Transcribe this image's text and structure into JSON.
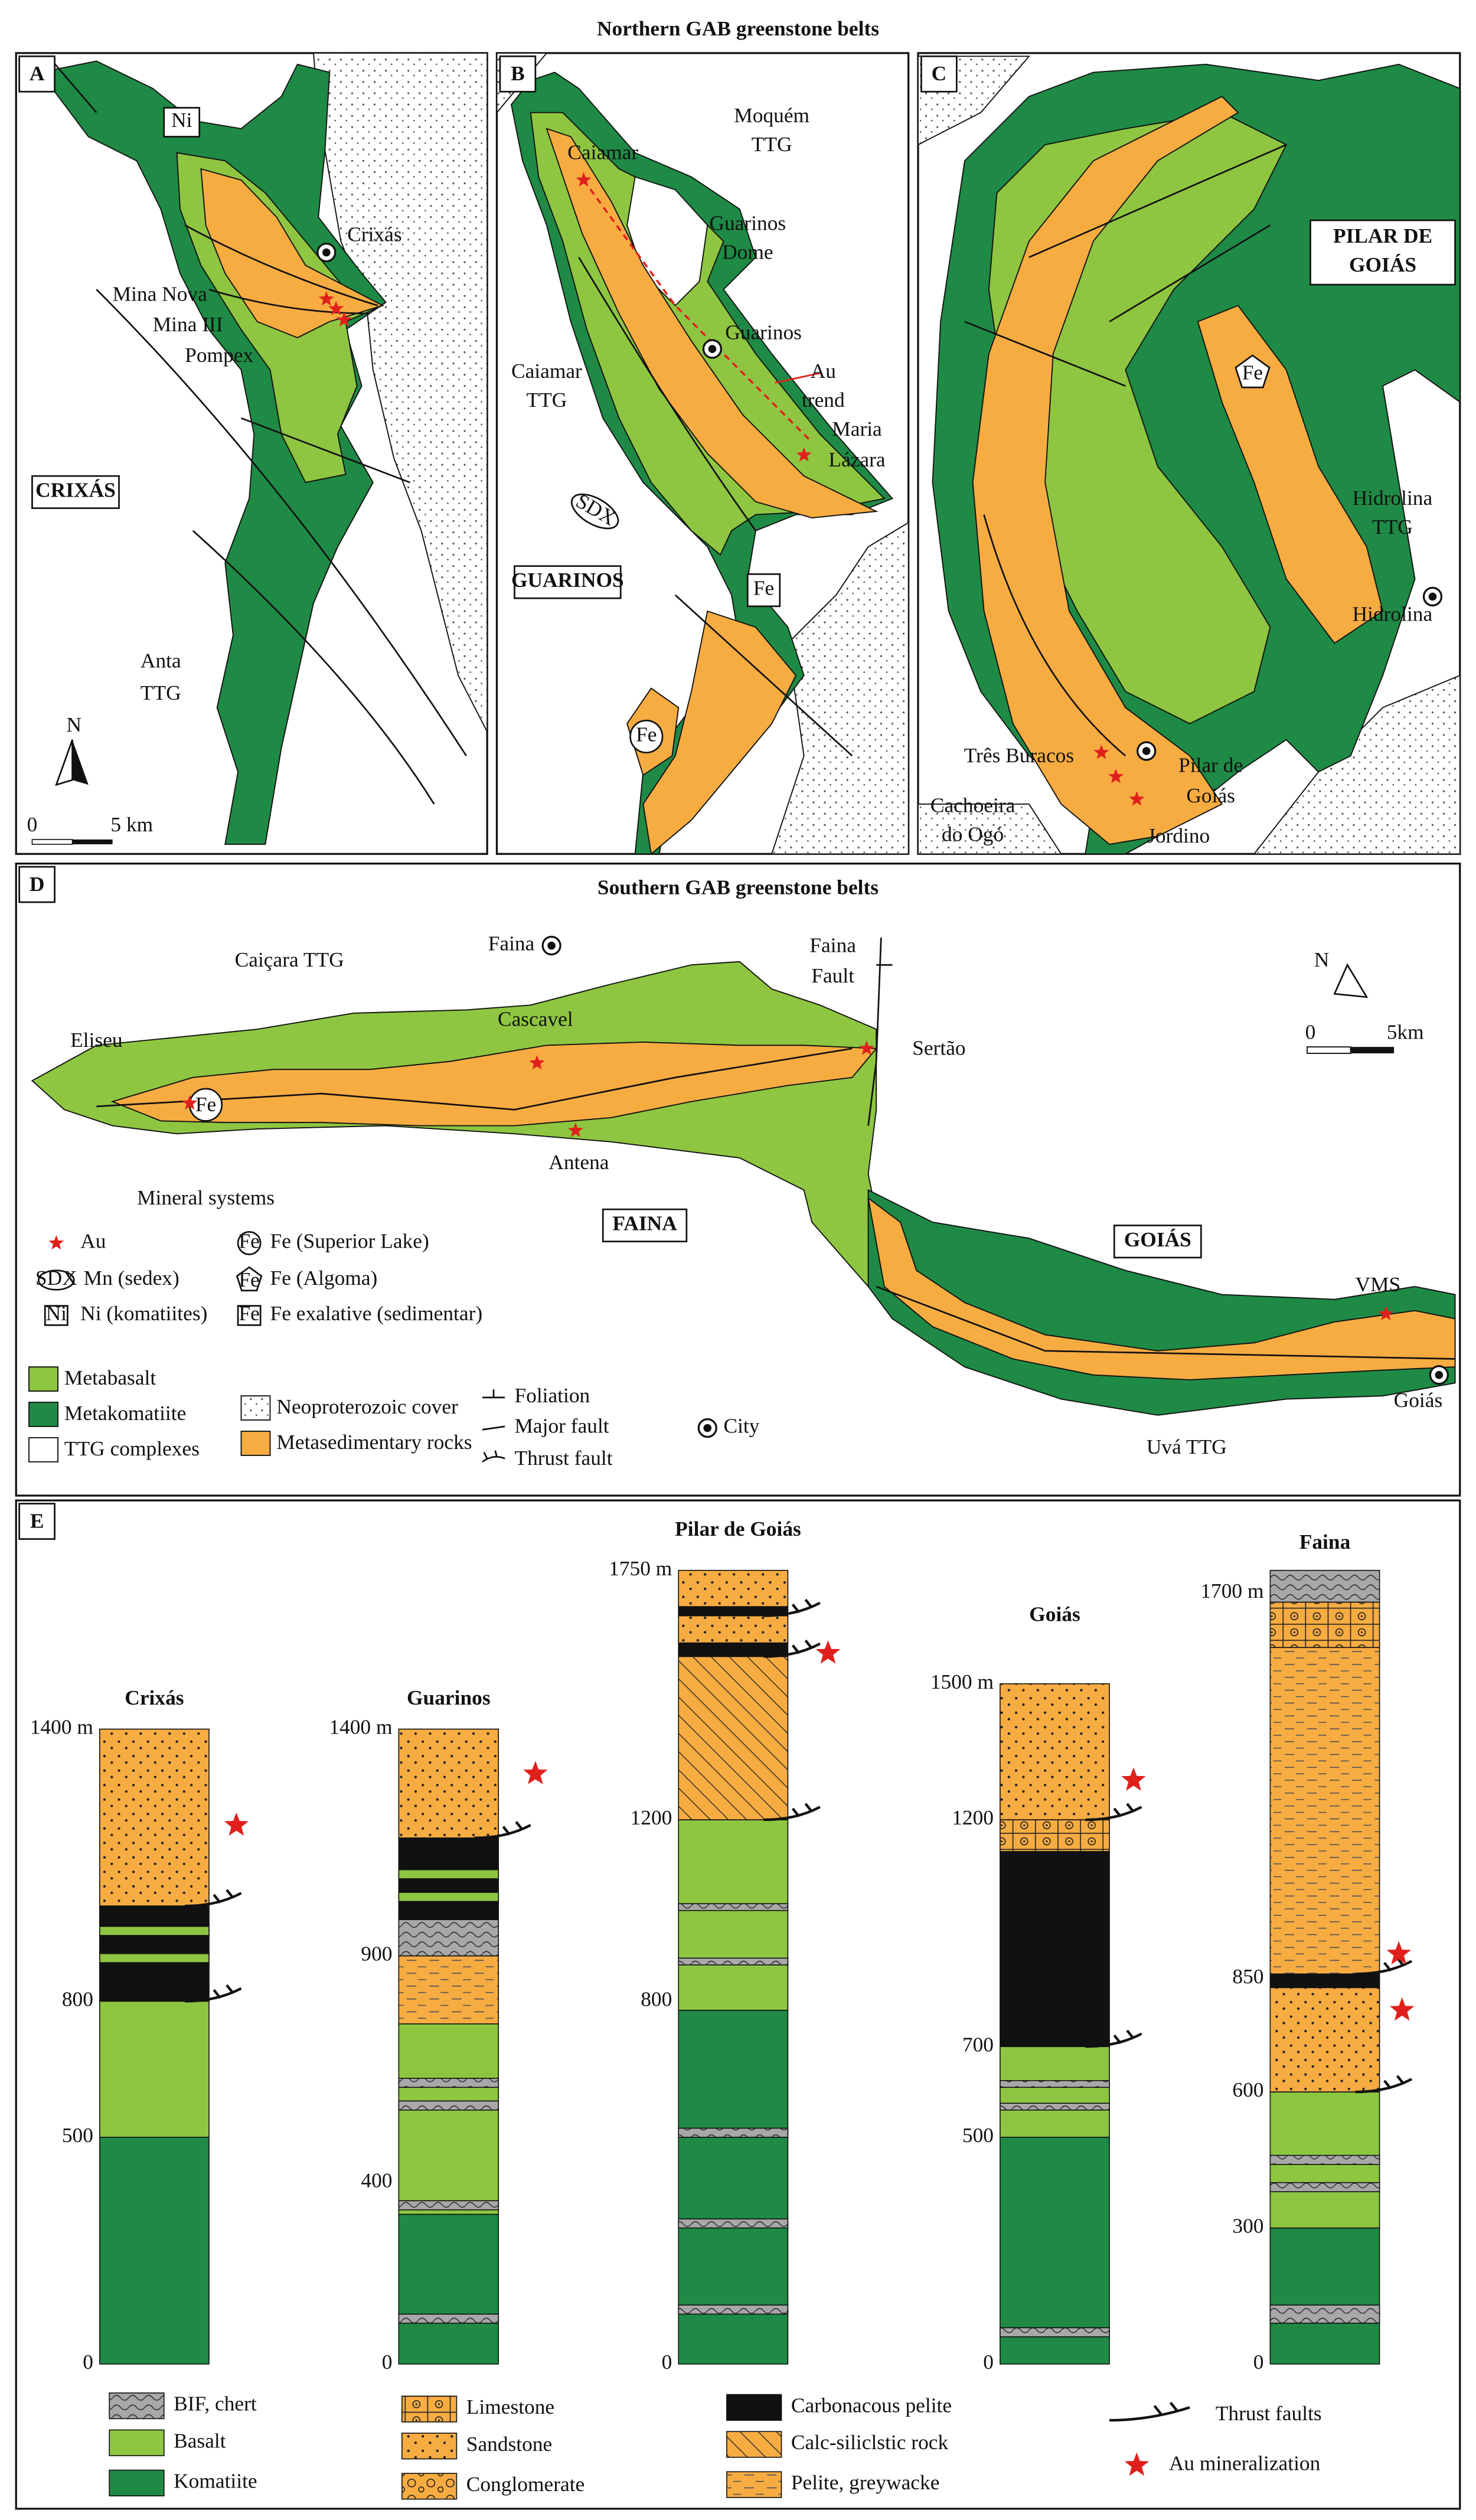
{
  "northern_title": "Northern GAB greenstone belts",
  "southern_title": "Southern GAB greenstone belts",
  "panel_a": {
    "letter": "A",
    "labels": [
      "Ni",
      "Crixás",
      "Mina Nova",
      "Mina III",
      "Pompex",
      "CRIXÁS",
      "Anta",
      "TTG"
    ],
    "north": "N",
    "scale": [
      "0",
      "5 km"
    ]
  },
  "panel_b": {
    "letter": "B",
    "labels": [
      "Caiamar",
      "Moquém",
      "TTG",
      "Guarinos",
      "Dome",
      "Guarinos",
      "Caiamar",
      "TTG",
      "Au",
      "trend",
      "Maria",
      "Lázara",
      "SDX",
      "GUARINOS",
      "Fe",
      "Fe"
    ]
  },
  "panel_c": {
    "letter": "C",
    "labels": [
      "PILAR DE",
      "GOIÁS",
      "Fe",
      "Hidrolina",
      "TTG",
      "Hidrolina",
      "Três Buracos",
      "Pilar de",
      "Goiás",
      "Cachoeira",
      "do Ogó",
      "Jordino"
    ]
  },
  "panel_d": {
    "letter": "D",
    "labels": [
      "Caiçara TTG",
      "Faina",
      "Faina",
      "Fault",
      "Eliseu",
      "Fe",
      "Cascavel",
      "Sertão",
      "Antena",
      "FAINA",
      "GOIÁS",
      "VMS",
      "Goiás",
      "Uvá TTG"
    ],
    "north": "N",
    "scale": [
      "0",
      "5km"
    ]
  },
  "mineral_legend": {
    "title": "Mineral systems",
    "items": [
      {
        "label": "Au"
      },
      {
        "symbol": "SDX",
        "label": "Mn (sedex)"
      },
      {
        "symbol": "Ni",
        "label": "Ni (komatiites)"
      },
      {
        "symbol": "Fe",
        "label": "Fe (Superior Lake)"
      },
      {
        "symbol": "Fe",
        "label": "Fe (Algoma)"
      },
      {
        "symbol": "Fe",
        "label": "Fe exalative (sedimentar)"
      }
    ]
  },
  "map_legend": {
    "items": [
      "Metabasalt",
      "Metakomatiite",
      "TTG complexes",
      "Neoproterozoic cover",
      "Metasedimentary rocks",
      "Foliation",
      "Major fault",
      "Thrust fault",
      "City"
    ]
  },
  "panel_e": {
    "letter": "E",
    "columns": [
      {
        "name": "Crixás",
        "ticks": [
          0,
          500,
          800,
          {
            "value": 1400,
            "label": "1400 m"
          }
        ]
      },
      {
        "name": "Guarinos",
        "ticks": [
          0,
          400,
          900,
          {
            "value": 1400,
            "label": "1400 m"
          }
        ]
      },
      {
        "name": "Pilar de Goiás",
        "ticks": [
          0,
          800,
          1200,
          {
            "value": 1750,
            "label": "1750 m"
          }
        ]
      },
      {
        "name": "Goiás",
        "ticks": [
          0,
          500,
          700,
          1200,
          {
            "value": 1500,
            "label": "1500 m"
          }
        ]
      },
      {
        "name": "Faina",
        "ticks": [
          0,
          300,
          600,
          850,
          {
            "value": 1700,
            "label": "1700 m"
          }
        ]
      }
    ],
    "legend": [
      "BIF, chert",
      "Basalt",
      "Komatiite",
      "Limestone",
      "Sandstone",
      "Conglomerate",
      "Carbonacous pelite",
      "Calc-siliclstic rock",
      "Pelite, greywacke",
      "Thrust faults",
      "Au mineralization"
    ]
  }
}
